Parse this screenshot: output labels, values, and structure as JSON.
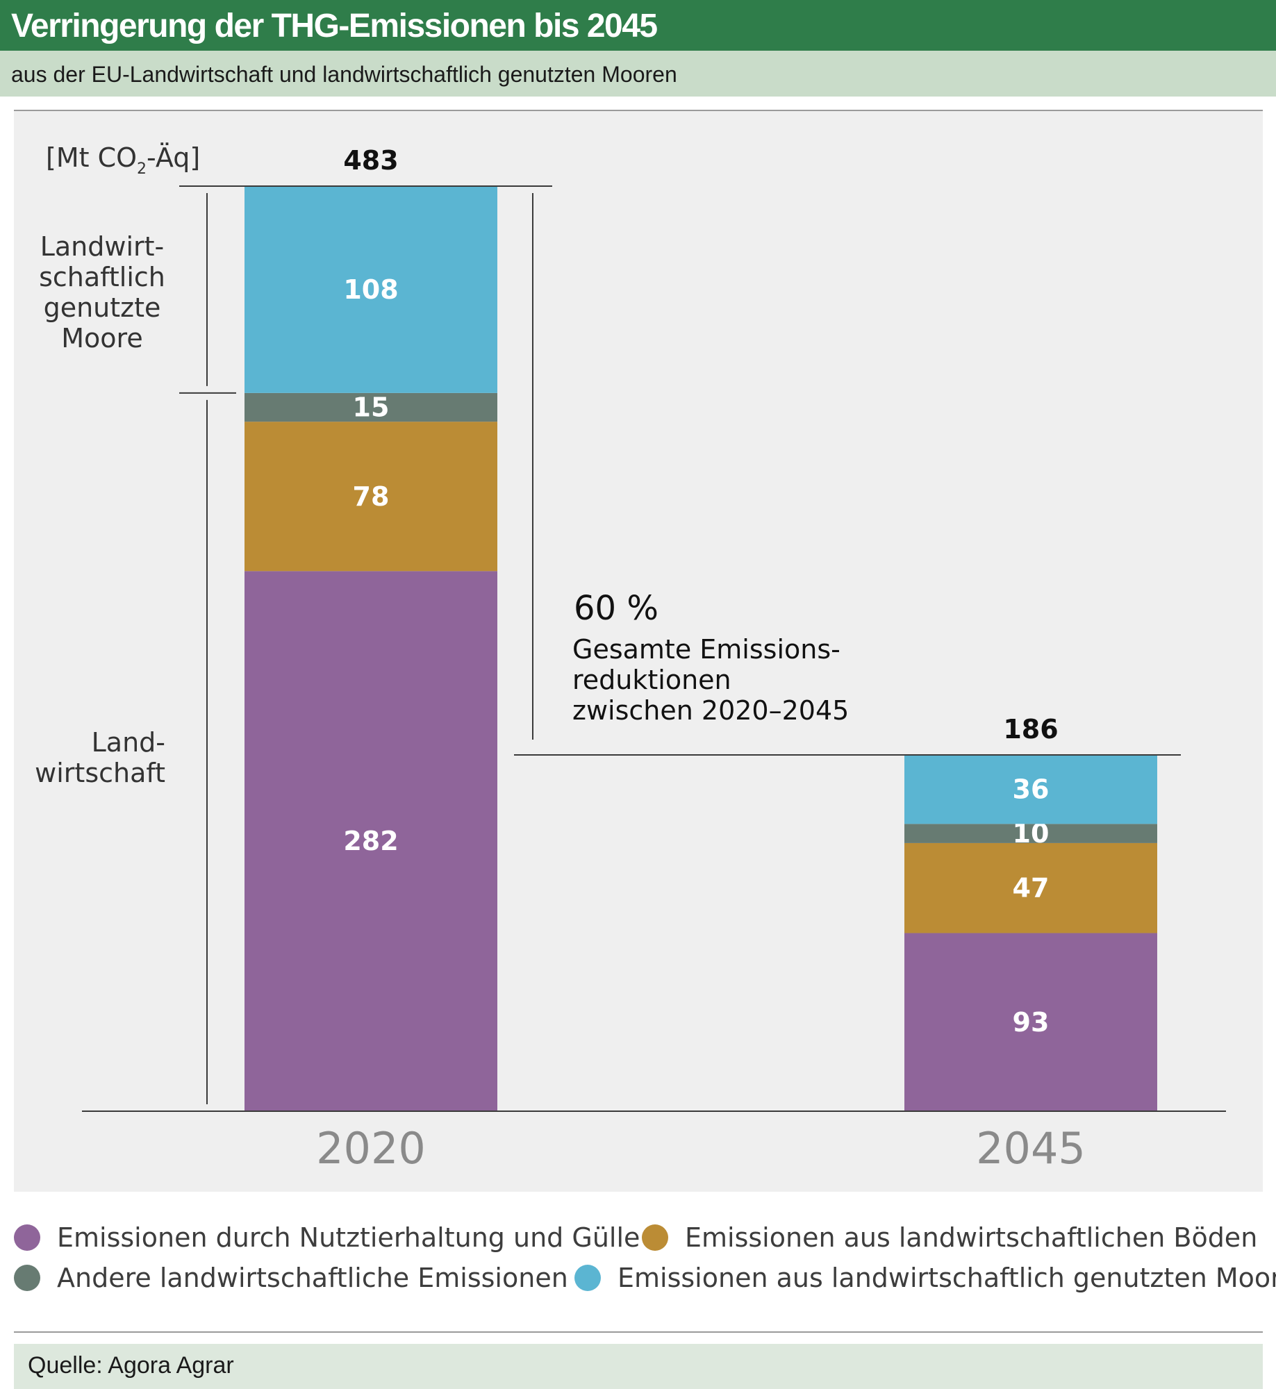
{
  "header": {
    "title": "Verringerung der THG-Emissionen bis 2045",
    "subtitle": "aus der EU-Landwirtschaft und landwirtschaftlich genutzten Mooren"
  },
  "chart_data": {
    "type": "bar",
    "stacked": true,
    "unit_label": "[Mt CO",
    "unit_sub": "2",
    "unit_suffix": "-Äq]",
    "categories": [
      "2020",
      "2045"
    ],
    "totals": [
      483,
      186
    ],
    "series": [
      {
        "name": "Emissionen durch Nutztierhaltung und Gülle",
        "values": [
          282,
          93
        ],
        "color": "#8f659a"
      },
      {
        "name": "Emissionen aus landwirtschaftlichen Böden",
        "values": [
          78,
          47
        ],
        "color": "#bb8c35"
      },
      {
        "name": "Andere landwirtschaftliche Emissionen",
        "values": [
          15,
          10
        ],
        "color": "#677b72"
      },
      {
        "name": "Emissionen aus landwirtschaftlich genutzten Mooren",
        "values": [
          108,
          36
        ],
        "color": "#5bb5d2"
      }
    ],
    "group_labels": {
      "moore": [
        "Landwirt-",
        "schaftlich",
        "genutzte",
        "Moore"
      ],
      "landwirtschaft": [
        "Land-",
        "wirtschaft"
      ]
    },
    "annotation": {
      "percent": "60 %",
      "lines": [
        "Gesamte Emissions-",
        "reduktionen",
        "zwischen 2020–2045"
      ]
    },
    "ylim": [
      0,
      483
    ],
    "grid": false,
    "legend_position": "bottom"
  },
  "source": "Quelle: Agora Agrar"
}
